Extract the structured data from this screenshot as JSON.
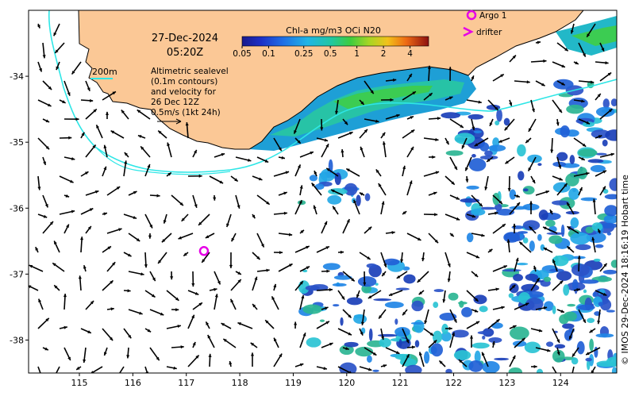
{
  "map": {
    "date": "27-Dec-2024",
    "time": "05:20Z",
    "colorbar": {
      "title": "Chl-a mg/m3 OCi N20",
      "ticks": [
        "0.05",
        "0.1",
        "0.25",
        "0.5",
        "1",
        "2",
        "4"
      ]
    },
    "legend": {
      "argo_label": "Argo 1",
      "drifter_label": "drifter",
      "contour_label": "200m"
    },
    "altimetry_note": [
      "Altimetric sealevel",
      "(0.1m contours)",
      "and velocity for",
      "26 Dec 12Z",
      "0.5m/s (1kt 24h)"
    ],
    "credit": "© IMOS 29-Dec-2024 18:16:19 Hobart time",
    "lon_ticks": [
      "115",
      "116",
      "117",
      "118",
      "119",
      "120",
      "121",
      "122",
      "123",
      "124"
    ],
    "lat_ticks": [
      "-34",
      "-35",
      "-36",
      "-37",
      "-38"
    ],
    "extent": {
      "lon": [
        114.05,
        125.05
      ],
      "lat": [
        -38.5,
        -33.0
      ]
    },
    "argo_float": {
      "lon": 117.33,
      "lat": -36.65
    },
    "colors": {
      "land": "#fbc896",
      "coast": "#000000",
      "contour_200m": "#2ee6e6",
      "argo": "#e600e6",
      "arrow": "#000000"
    }
  }
}
